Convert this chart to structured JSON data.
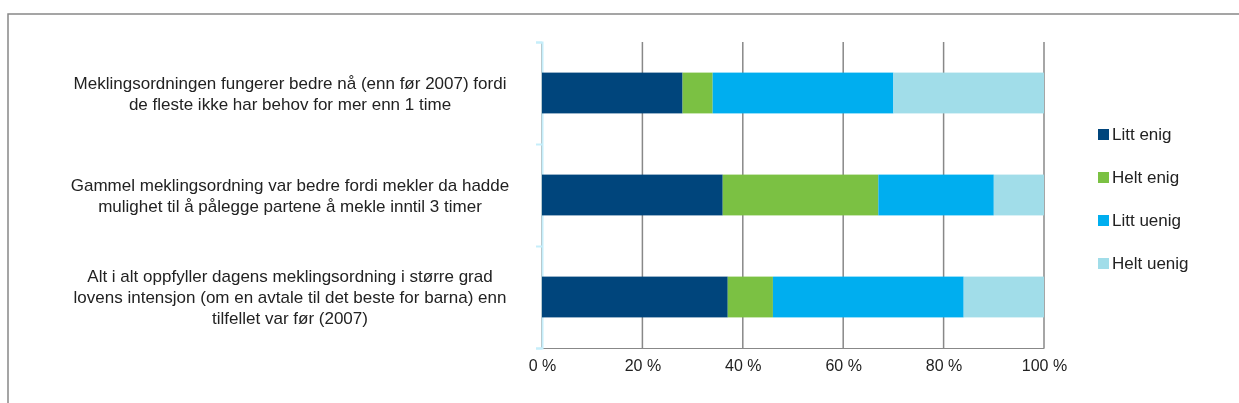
{
  "chart_data": {
    "type": "bar",
    "orientation": "horizontal",
    "stacked": true,
    "categories": [
      "Meklingsordningen fungerer bedre nå (enn før 2007) fordi de fleste ikke har behov for mer enn 1 time",
      "Gammel meklingsordning var bedre fordi mekler da hadde mulighet til å pålegge partene å mekle inntil 3 timer",
      "Alt i alt oppfyller dagens meklingsordning i større grad lovens intensjon (om en avtale til det beste for barna) enn tilfellet var før (2007)"
    ],
    "series": [
      {
        "name": "Litt enig",
        "color": "#00457c",
        "values": [
          28,
          36,
          37
        ]
      },
      {
        "name": "Helt enig",
        "color": "#7bc143",
        "values": [
          6,
          31,
          9
        ]
      },
      {
        "name": "Litt uenig",
        "color": "#00aeef",
        "values": [
          36,
          23,
          38
        ]
      },
      {
        "name": "Helt uenig",
        "color": "#a1dde9",
        "values": [
          30,
          10,
          16
        ]
      }
    ],
    "xlim": [
      0,
      100
    ],
    "xticks": [
      {
        "value": 0,
        "label": "0 %"
      },
      {
        "value": 20,
        "label": "20 %"
      },
      {
        "value": 40,
        "label": "40 %"
      },
      {
        "value": 60,
        "label": "60 %"
      },
      {
        "value": 80,
        "label": "80 %"
      },
      {
        "value": 100,
        "label": "100 %"
      }
    ],
    "grid": "x",
    "legend": "right"
  }
}
